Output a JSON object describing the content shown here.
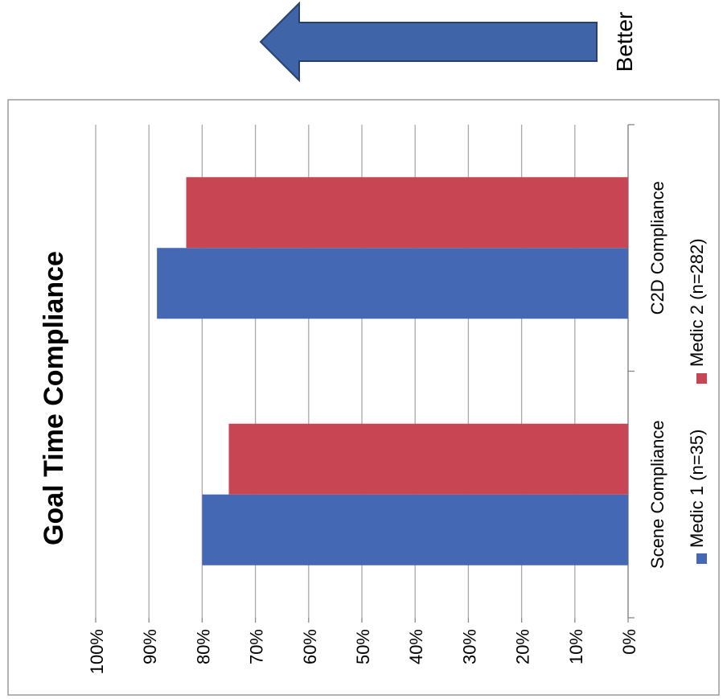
{
  "annotation": {
    "arrow_label": "Better"
  },
  "colors": {
    "medic1": "#4468b4",
    "medic2": "#c84654",
    "grid": "#a8a8a8",
    "arrow": "#3f65a8",
    "arrow_stroke": "#283f70"
  },
  "chart_data": {
    "type": "bar",
    "orientation": "horizontal",
    "title": "Goal Time Compliance",
    "categories": [
      "Scene Compliance",
      "C2D Compliance"
    ],
    "series": [
      {
        "name": "Medic 1 (n=35)",
        "values": [
          80,
          88.5
        ]
      },
      {
        "name": "Medic 2 (n=282)",
        "values": [
          75,
          83
        ]
      }
    ],
    "value_axis": {
      "min": 0,
      "max": 100,
      "step": 10,
      "tick_labels": [
        "0%",
        "10%",
        "20%",
        "30%",
        "40%",
        "50%",
        "60%",
        "70%",
        "80%",
        "90%",
        "100%"
      ]
    },
    "grid": true,
    "legend_position": "bottom"
  }
}
